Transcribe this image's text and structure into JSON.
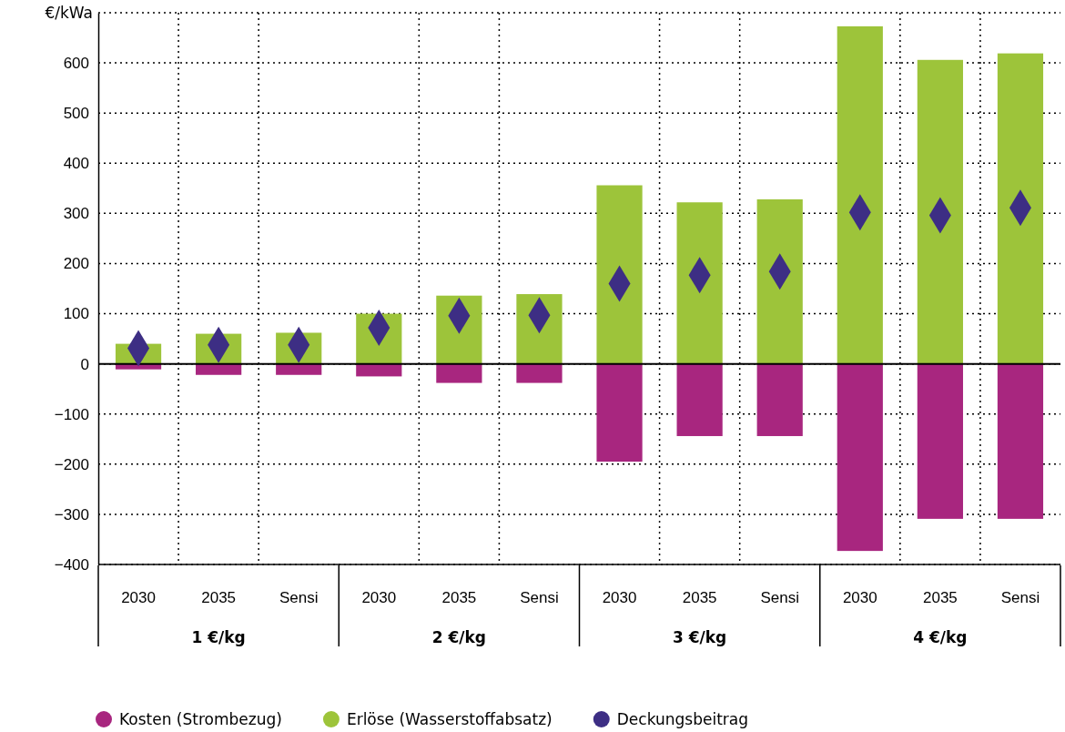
{
  "chart_data": {
    "type": "bar",
    "ylabel": "€/kWa",
    "categories": [
      "2030",
      "2035",
      "Sensi",
      "2030",
      "2035",
      "Sensi",
      "2030",
      "2035",
      "Sensi",
      "2030",
      "2035",
      "Sensi"
    ],
    "annotations": [
      "1 €/kg",
      "2 €/kg",
      "3 €/kg",
      "4 €/kg"
    ],
    "stacked": true,
    "series": [
      {
        "name": "Kosten (Strombezug)",
        "color": "#a8267f",
        "values": [
          -11,
          -22,
          -22,
          -25,
          -38,
          -38,
          -195,
          -144,
          -144,
          -373,
          -309,
          -309
        ]
      },
      {
        "name": "Erlöse (Wasserstoffabsatz)",
        "color": "#9dc43a",
        "values": [
          40,
          60,
          62,
          100,
          136,
          139,
          356,
          322,
          328,
          673,
          606,
          619
        ]
      },
      {
        "name": "Deckungsbeitrag",
        "type": "scatter",
        "marker": "diamond",
        "color": "#3d2e84",
        "values": [
          31,
          38,
          38,
          72,
          96,
          97,
          160,
          177,
          184,
          302,
          296,
          311
        ]
      }
    ],
    "ylim": [
      -400,
      700
    ],
    "yticks": [
      -400,
      -300,
      -200,
      -100,
      0,
      100,
      200,
      300,
      400,
      500,
      600
    ],
    "grid": true,
    "legend": "bottom"
  }
}
